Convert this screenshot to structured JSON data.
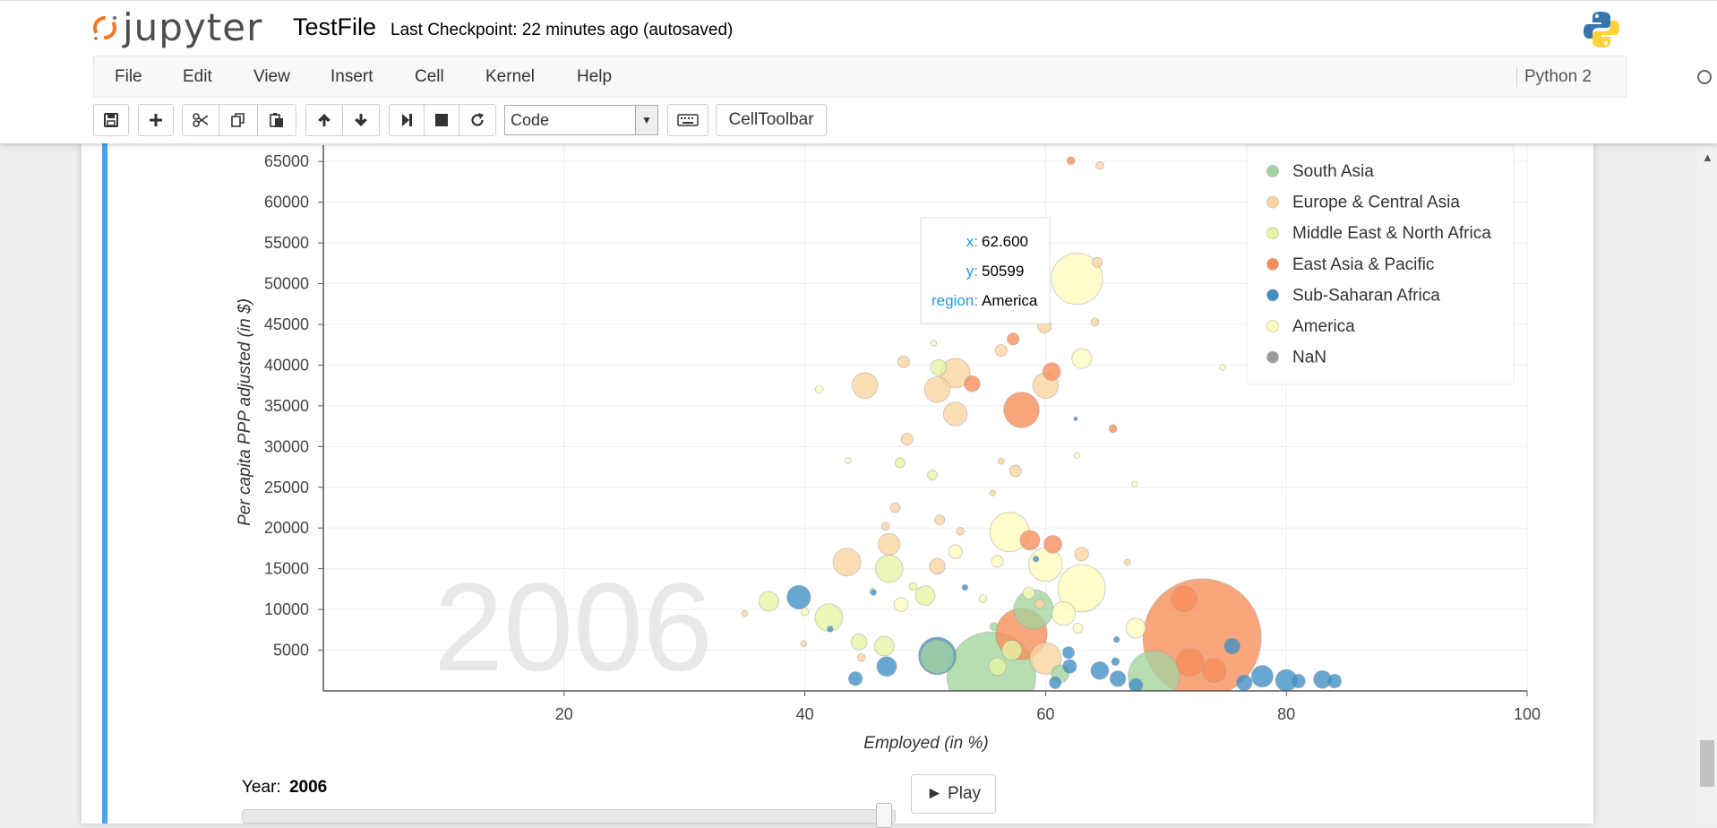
{
  "header": {
    "logo_text": "jupyter",
    "notebook_name": "TestFile",
    "checkpoint": "Last Checkpoint: 22 minutes ago (autosaved)",
    "kernel_logo": "python-logo-icon"
  },
  "menu": {
    "items": [
      "File",
      "Edit",
      "View",
      "Insert",
      "Cell",
      "Kernel",
      "Help"
    ],
    "kernel_name": "Python 2"
  },
  "toolbar": {
    "icons": [
      "save-icon",
      "plus-icon",
      "cut-icon",
      "copy-icon",
      "paste-icon",
      "arrow-up-icon",
      "arrow-down-icon",
      "step-forward-icon",
      "stop-icon",
      "restart-icon"
    ],
    "cell_type": "Code",
    "keyboard_icon": "keyboard-icon",
    "celltoolbar_label": "CellToolbar"
  },
  "chart_data": {
    "type": "scatter",
    "subtype": "bubble",
    "watermark_year": "2006",
    "xlabel": "Employed (in %)",
    "ylabel": "Per capita PPP adjusted (in $)",
    "xlim": [
      0,
      100
    ],
    "ylim": [
      0,
      67000
    ],
    "x_ticks": [
      20,
      40,
      60,
      80,
      100
    ],
    "y_ticks": [
      5000,
      10000,
      15000,
      20000,
      25000,
      30000,
      35000,
      40000,
      45000,
      50000,
      55000,
      60000,
      65000
    ],
    "grid": true,
    "legend_position": "top-right",
    "legend": [
      {
        "name": "South Asia",
        "color": "#a3d39c"
      },
      {
        "name": "Europe & Central Asia",
        "color": "#fdd49e"
      },
      {
        "name": "Middle East & North Africa",
        "color": "#e6f5a3"
      },
      {
        "name": "East Asia & Pacific",
        "color": "#f88d59"
      },
      {
        "name": "Sub-Saharan Africa",
        "color": "#3e8ec4"
      },
      {
        "name": "America",
        "color": "#fefbbd"
      },
      {
        "name": "NaN",
        "color": "#999999"
      }
    ],
    "tooltip": {
      "x_label": "x:",
      "x_value": "62.600",
      "y_label": "y:",
      "y_value": "50599",
      "region_label": "region:",
      "region_value": "America"
    },
    "points": [
      {
        "x": 73,
        "y": 6500,
        "r": 6.0,
        "region": "East Asia & Pacific"
      },
      {
        "x": 55.5,
        "y": 1800,
        "r": 4.5,
        "region": "South Asia"
      },
      {
        "x": 69,
        "y": 1800,
        "r": 2.6,
        "region": "South Asia"
      },
      {
        "x": 51,
        "y": 4300,
        "r": 1.9,
        "region": "Sub-Saharan Africa"
      },
      {
        "x": 51,
        "y": 4200,
        "r": 1.7,
        "region": "South Asia"
      },
      {
        "x": 62.6,
        "y": 50599,
        "r": 2.6,
        "region": "America"
      },
      {
        "x": 63,
        "y": 12600,
        "r": 2.4,
        "region": "America"
      },
      {
        "x": 57,
        "y": 19500,
        "r": 2.0,
        "region": "America"
      },
      {
        "x": 58,
        "y": 7000,
        "r": 2.6,
        "region": "East Asia & Pacific"
      },
      {
        "x": 60,
        "y": 15500,
        "r": 1.7,
        "region": "America"
      },
      {
        "x": 58,
        "y": 34500,
        "r": 1.8,
        "region": "East Asia & Pacific"
      },
      {
        "x": 52.5,
        "y": 39000,
        "r": 1.5,
        "region": "Europe & Central Asia"
      },
      {
        "x": 45,
        "y": 37500,
        "r": 1.3,
        "region": "Europe & Central Asia"
      },
      {
        "x": 51,
        "y": 37000,
        "r": 1.3,
        "region": "Europe & Central Asia"
      },
      {
        "x": 52.5,
        "y": 34000,
        "r": 1.2,
        "region": "Europe & Central Asia"
      },
      {
        "x": 60,
        "y": 37500,
        "r": 1.3,
        "region": "Europe & Central Asia"
      },
      {
        "x": 43.5,
        "y": 15800,
        "r": 1.4,
        "region": "Europe & Central Asia"
      },
      {
        "x": 47,
        "y": 15000,
        "r": 1.4,
        "region": "Middle East & North Africa"
      },
      {
        "x": 42,
        "y": 9000,
        "r": 1.4,
        "region": "Middle East & North Africa"
      },
      {
        "x": 39.5,
        "y": 11500,
        "r": 1.2,
        "region": "Sub-Saharan Africa"
      },
      {
        "x": 37,
        "y": 11000,
        "r": 1.0,
        "region": "Middle East & North Africa"
      },
      {
        "x": 47,
        "y": 18000,
        "r": 1.1,
        "region": "Europe & Central Asia"
      },
      {
        "x": 50,
        "y": 11700,
        "r": 1.0,
        "region": "Middle East & North Africa"
      },
      {
        "x": 59,
        "y": 10000,
        "r": 2.0,
        "region": "South Asia"
      },
      {
        "x": 61.5,
        "y": 9500,
        "r": 1.2,
        "region": "America"
      },
      {
        "x": 60,
        "y": 4000,
        "r": 1.6,
        "region": "Europe & Central Asia"
      },
      {
        "x": 71.5,
        "y": 11300,
        "r": 1.3,
        "region": "East Asia & Pacific"
      },
      {
        "x": 72,
        "y": 3500,
        "r": 1.4,
        "region": "East Asia & Pacific"
      },
      {
        "x": 74,
        "y": 2500,
        "r": 1.2,
        "region": "East Asia & Pacific"
      },
      {
        "x": 67.5,
        "y": 7700,
        "r": 1.0,
        "region": "America"
      },
      {
        "x": 58.7,
        "y": 18500,
        "r": 1.0,
        "region": "East Asia & Pacific"
      },
      {
        "x": 60.5,
        "y": 39200,
        "r": 0.9,
        "region": "East Asia & Pacific"
      },
      {
        "x": 63,
        "y": 40800,
        "r": 1.0,
        "region": "America"
      },
      {
        "x": 46.8,
        "y": 3000,
        "r": 1.0,
        "region": "Sub-Saharan Africa"
      },
      {
        "x": 46.6,
        "y": 5500,
        "r": 1.0,
        "region": "Middle East & North Africa"
      },
      {
        "x": 44.5,
        "y": 6000,
        "r": 0.8,
        "region": "Middle East & North Africa"
      },
      {
        "x": 64.5,
        "y": 2500,
        "r": 0.9,
        "region": "Sub-Saharan Africa"
      },
      {
        "x": 66,
        "y": 1500,
        "r": 0.8,
        "region": "Sub-Saharan Africa"
      },
      {
        "x": 67.5,
        "y": 700,
        "r": 0.7,
        "region": "Sub-Saharan Africa"
      },
      {
        "x": 78,
        "y": 1800,
        "r": 1.1,
        "region": "Sub-Saharan Africa"
      },
      {
        "x": 80,
        "y": 1300,
        "r": 1.1,
        "region": "Sub-Saharan Africa"
      },
      {
        "x": 76.5,
        "y": 1000,
        "r": 0.8,
        "region": "Sub-Saharan Africa"
      },
      {
        "x": 81,
        "y": 1200,
        "r": 0.7,
        "region": "Sub-Saharan Africa"
      },
      {
        "x": 83,
        "y": 1400,
        "r": 0.9,
        "region": "Sub-Saharan Africa"
      },
      {
        "x": 84,
        "y": 1200,
        "r": 0.7,
        "region": "Sub-Saharan Africa"
      },
      {
        "x": 75.5,
        "y": 5500,
        "r": 0.8,
        "region": "Sub-Saharan Africa"
      },
      {
        "x": 62,
        "y": 3000,
        "r": 0.7,
        "region": "Sub-Saharan Africa"
      },
      {
        "x": 61.2,
        "y": 2100,
        "r": 0.9,
        "region": "South Asia"
      },
      {
        "x": 57.2,
        "y": 5000,
        "r": 1.0,
        "region": "Middle East & North Africa"
      },
      {
        "x": 56,
        "y": 3000,
        "r": 0.9,
        "region": "Middle East & North Africa"
      },
      {
        "x": 48,
        "y": 10600,
        "r": 0.7,
        "region": "America"
      },
      {
        "x": 51,
        "y": 15300,
        "r": 0.8,
        "region": "Europe & Central Asia"
      },
      {
        "x": 52.5,
        "y": 17100,
        "r": 0.7,
        "region": "America"
      },
      {
        "x": 56,
        "y": 15900,
        "r": 0.6,
        "region": "America"
      },
      {
        "x": 57.5,
        "y": 27000,
        "r": 0.6,
        "region": "Europe & Central Asia"
      },
      {
        "x": 48.5,
        "y": 30900,
        "r": 0.6,
        "region": "Europe & Central Asia"
      },
      {
        "x": 48.2,
        "y": 40400,
        "r": 0.6,
        "region": "Europe & Central Asia"
      },
      {
        "x": 51.1,
        "y": 39700,
        "r": 0.8,
        "region": "Middle East & North Africa"
      },
      {
        "x": 53.9,
        "y": 37700,
        "r": 0.8,
        "region": "East Asia & Pacific"
      },
      {
        "x": 59.9,
        "y": 44800,
        "r": 0.7,
        "region": "Europe & Central Asia"
      },
      {
        "x": 57.3,
        "y": 43200,
        "r": 0.6,
        "region": "East Asia & Pacific"
      },
      {
        "x": 56.3,
        "y": 41800,
        "r": 0.6,
        "region": "Europe & Central Asia"
      },
      {
        "x": 64.1,
        "y": 45300,
        "r": 0.4,
        "region": "Europe & Central Asia"
      },
      {
        "x": 64.3,
        "y": 52600,
        "r": 0.5,
        "region": "Europe & Central Asia"
      },
      {
        "x": 62.1,
        "y": 65100,
        "r": 0.4,
        "region": "East Asia & Pacific"
      },
      {
        "x": 64.5,
        "y": 64500,
        "r": 0.4,
        "region": "Europe & Central Asia"
      },
      {
        "x": 63,
        "y": 16800,
        "r": 0.7,
        "region": "Europe & Central Asia"
      },
      {
        "x": 60.6,
        "y": 18000,
        "r": 0.9,
        "region": "East Asia & Pacific"
      },
      {
        "x": 50.6,
        "y": 26500,
        "r": 0.5,
        "region": "Middle East & North Africa"
      },
      {
        "x": 47.5,
        "y": 22500,
        "r": 0.5,
        "region": "Europe & Central Asia"
      },
      {
        "x": 47.9,
        "y": 28000,
        "r": 0.5,
        "region": "Middle East & North Africa"
      },
      {
        "x": 41.2,
        "y": 37000,
        "r": 0.4,
        "region": "America"
      },
      {
        "x": 40,
        "y": 9700,
        "r": 0.4,
        "region": "America"
      },
      {
        "x": 35,
        "y": 9500,
        "r": 0.3,
        "region": "Europe & Central Asia"
      },
      {
        "x": 39.9,
        "y": 5800,
        "r": 0.3,
        "region": "Europe & Central Asia"
      },
      {
        "x": 45.6,
        "y": 12300,
        "r": 0.3,
        "region": "America"
      },
      {
        "x": 44.7,
        "y": 4100,
        "r": 0.4,
        "region": "Europe & Central Asia"
      },
      {
        "x": 42.1,
        "y": 7600,
        "r": 0.3,
        "region": "Sub-Saharan Africa"
      },
      {
        "x": 44.2,
        "y": 1500,
        "r": 0.7,
        "region": "Sub-Saharan Africa"
      },
      {
        "x": 45.7,
        "y": 12100,
        "r": 0.3,
        "region": "Sub-Saharan Africa"
      },
      {
        "x": 49,
        "y": 12800,
        "r": 0.4,
        "region": "Middle East & North Africa"
      },
      {
        "x": 46.7,
        "y": 20200,
        "r": 0.4,
        "region": "Europe & Central Asia"
      },
      {
        "x": 55.6,
        "y": 24300,
        "r": 0.3,
        "region": "Europe & Central Asia"
      },
      {
        "x": 56.3,
        "y": 28200,
        "r": 0.3,
        "region": "Europe & Central Asia"
      },
      {
        "x": 51.2,
        "y": 21000,
        "r": 0.5,
        "region": "Europe & Central Asia"
      },
      {
        "x": 52.9,
        "y": 19600,
        "r": 0.4,
        "region": "Europe & Central Asia"
      },
      {
        "x": 53.3,
        "y": 12700,
        "r": 0.3,
        "region": "Sub-Saharan Africa"
      },
      {
        "x": 54.8,
        "y": 11300,
        "r": 0.4,
        "region": "America"
      },
      {
        "x": 59.2,
        "y": 16200,
        "r": 0.3,
        "region": "Sub-Saharan Africa"
      },
      {
        "x": 58.6,
        "y": 12000,
        "r": 0.6,
        "region": "America"
      },
      {
        "x": 59.5,
        "y": 10700,
        "r": 0.5,
        "region": "Europe & Central Asia"
      },
      {
        "x": 55.7,
        "y": 7900,
        "r": 0.4,
        "region": "South Asia"
      },
      {
        "x": 61.9,
        "y": 4700,
        "r": 0.6,
        "region": "Sub-Saharan Africa"
      },
      {
        "x": 60.8,
        "y": 1000,
        "r": 0.6,
        "region": "Sub-Saharan Africa"
      },
      {
        "x": 62.7,
        "y": 7700,
        "r": 0.5,
        "region": "America"
      },
      {
        "x": 62.5,
        "y": 33400,
        "r": 0.2,
        "region": "Sub-Saharan Africa"
      },
      {
        "x": 62.6,
        "y": 28900,
        "r": 0.3,
        "region": "America"
      },
      {
        "x": 65.6,
        "y": 32200,
        "r": 0.4,
        "region": "East Asia & Pacific"
      },
      {
        "x": 66.8,
        "y": 15800,
        "r": 0.3,
        "region": "Europe & Central Asia"
      },
      {
        "x": 67.4,
        "y": 25400,
        "r": 0.3,
        "region": "America"
      },
      {
        "x": 65.9,
        "y": 6300,
        "r": 0.3,
        "region": "Sub-Saharan Africa"
      },
      {
        "x": 65.8,
        "y": 3600,
        "r": 0.4,
        "region": "Sub-Saharan Africa"
      },
      {
        "x": 74.7,
        "y": 39700,
        "r": 0.3,
        "region": "America"
      },
      {
        "x": 43.6,
        "y": 28300,
        "r": 0.3,
        "region": "America"
      },
      {
        "x": 50.7,
        "y": 42700,
        "r": 0.3,
        "region": "America"
      }
    ]
  },
  "controls": {
    "year_label": "Year:",
    "year_value": "2006",
    "slider_fraction": 1.0,
    "play_label": "► Play"
  }
}
